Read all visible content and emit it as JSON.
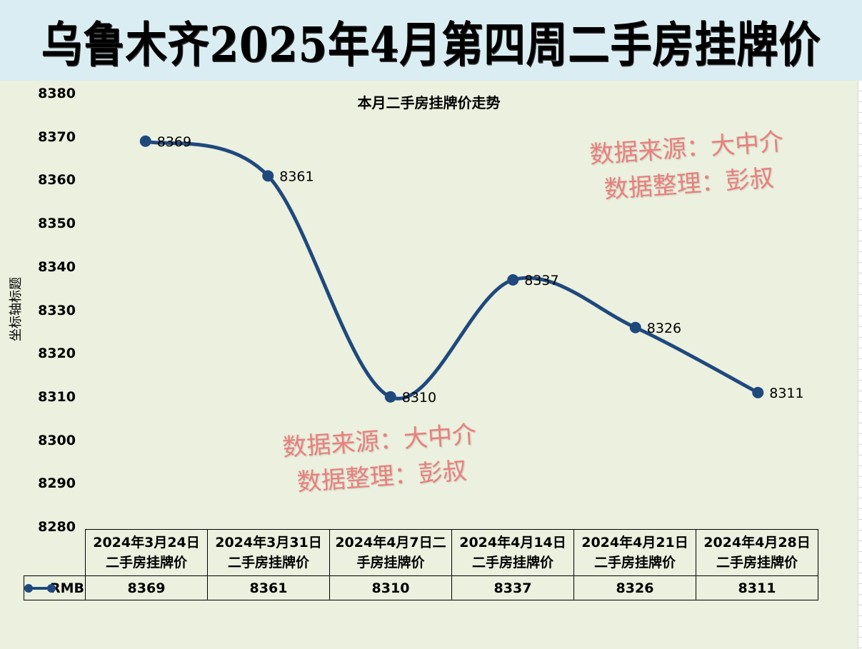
{
  "banner": {
    "title": "乌鲁木齐2025年4月第四周二手房挂牌价"
  },
  "watermarks": [
    {
      "line1": "数据来源：大中介",
      "line2": "数据整理：彭叔"
    },
    {
      "line1": "数据来源：大中介",
      "line2": "数据整理：彭叔"
    }
  ],
  "colors": {
    "series": "#1f497d",
    "plot_bg": "#ebf0df",
    "banner_bg": "#daedf3",
    "watermark": "#e9807c"
  },
  "chart_data": {
    "type": "line",
    "title": "本月二手房挂牌价走势",
    "xlabel": "",
    "ylabel": "坐标轴标题",
    "ylim": [
      8280,
      8380
    ],
    "yticks": [
      8380,
      8370,
      8360,
      8350,
      8340,
      8330,
      8320,
      8310,
      8300,
      8290,
      8280
    ],
    "grid": false,
    "smooth": true,
    "categories": [
      "2024年3月24日二手房挂牌价",
      "2024年3月31日二手房挂牌价",
      "2024年4月7日二手房挂牌价",
      "2024年4月14日二手房挂牌价",
      "2024年4月21日二手房挂牌价",
      "2024年4月28日二手房挂牌价"
    ],
    "category_lines": [
      [
        "2024年3月24日",
        "二手房挂牌价"
      ],
      [
        "2024年3月31日",
        "二手房挂牌价"
      ],
      [
        "2024年4月7日二",
        "手房挂牌价"
      ],
      [
        "2024年4月14日",
        "二手房挂牌价"
      ],
      [
        "2024年4月21日",
        "二手房挂牌价"
      ],
      [
        "2024年4月28日",
        "二手房挂牌价"
      ]
    ],
    "series": [
      {
        "name": "RMB",
        "values": [
          8369,
          8361,
          8310,
          8337,
          8326,
          8311
        ]
      }
    ],
    "data_labels": [
      "8369",
      "8361",
      "8310",
      "8337",
      "8326",
      "8311"
    ],
    "data_table": true
  }
}
